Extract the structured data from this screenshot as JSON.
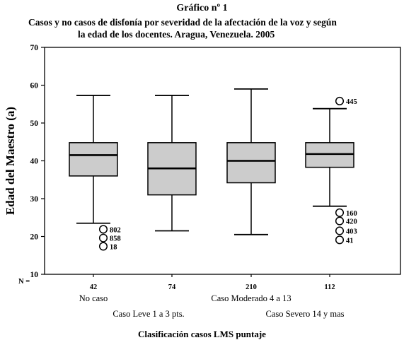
{
  "title": {
    "line1": "Gráfico nº 1",
    "line2": "Casos y no casos de disfonía por severidad de la afectación de la voz y según",
    "line3": "la edad de los docentes.  Aragua, Venezuela. 2005"
  },
  "chart_data": {
    "type": "boxplot",
    "ylabel": "Edad del Maestro (a)",
    "xlabel": "Clasificación casos LMS puntaje",
    "ylim": [
      10,
      70
    ],
    "yticks": [
      10,
      20,
      30,
      40,
      50,
      60,
      70
    ],
    "n_label": "N =",
    "box_color": "#cccccc",
    "categories": [
      "No caso",
      "Caso Leve 1 a 3 pts.",
      "Caso Moderado 4 a 13",
      "Caso Severo 14 y mas"
    ],
    "n": [
      "42",
      "74",
      "210",
      "112"
    ],
    "boxes": [
      {
        "whisker_low": 23.5,
        "q1": 36,
        "median": 41.5,
        "q3": 44.8,
        "whisker_high": 57.3,
        "outliers": [
          {
            "value": 21.9,
            "label": "802"
          },
          {
            "value": 19.6,
            "label": "858"
          },
          {
            "value": 17.4,
            "label": "18"
          }
        ]
      },
      {
        "whisker_low": 21.5,
        "q1": 31,
        "median": 38,
        "q3": 44.8,
        "whisker_high": 57.3,
        "outliers": []
      },
      {
        "whisker_low": 20.5,
        "q1": 34.2,
        "median": 40,
        "q3": 44.8,
        "whisker_high": 59,
        "outliers": []
      },
      {
        "whisker_low": 28,
        "q1": 38.3,
        "median": 41.8,
        "q3": 44.8,
        "whisker_high": 53.8,
        "outliers": [
          {
            "value": 55.8,
            "label": "445"
          },
          {
            "value": 26.3,
            "label": "160"
          },
          {
            "value": 24.1,
            "label": "420"
          },
          {
            "value": 21.5,
            "label": "403"
          },
          {
            "value": 19.1,
            "label": "41"
          }
        ]
      }
    ]
  }
}
